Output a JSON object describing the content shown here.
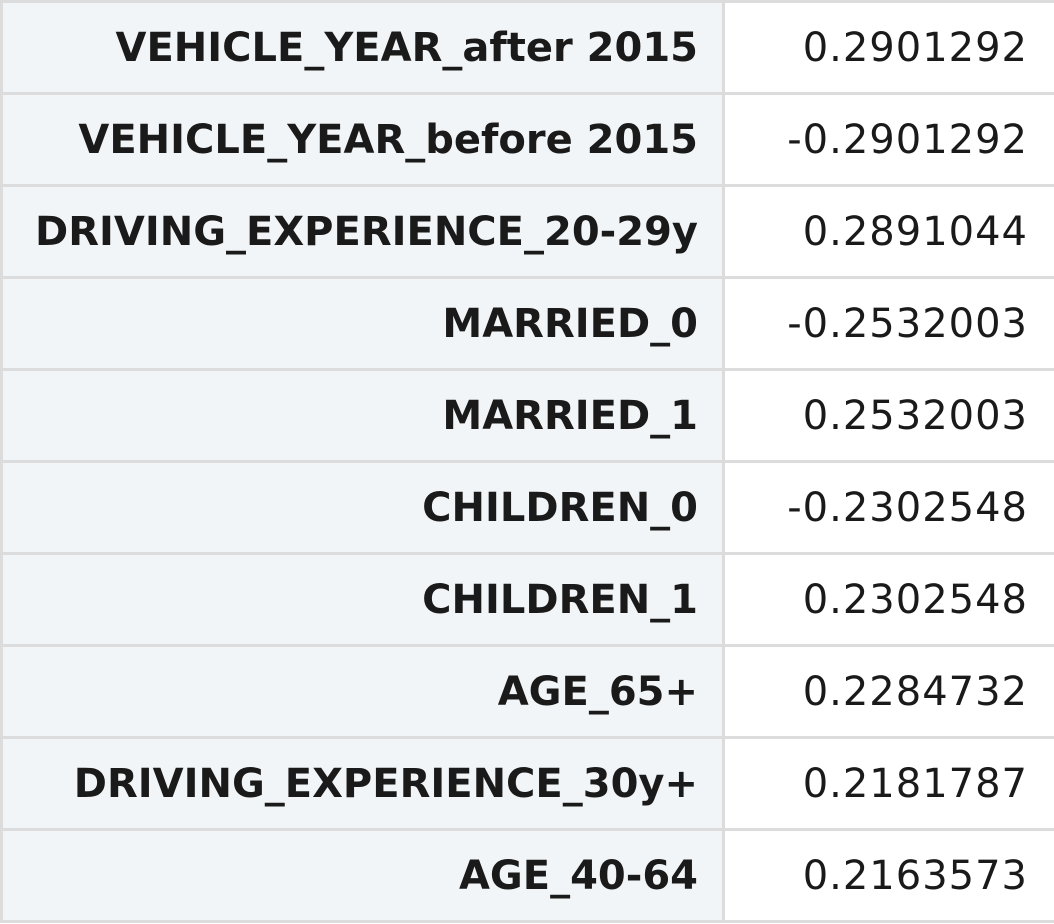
{
  "table": {
    "rows": [
      {
        "label": "VEHICLE_YEAR_after 2015",
        "value": "0.2901292"
      },
      {
        "label": "VEHICLE_YEAR_before 2015",
        "value": "-0.2901292"
      },
      {
        "label": "DRIVING_EXPERIENCE_20-29y",
        "value": "0.2891044"
      },
      {
        "label": "MARRIED_0",
        "value": "-0.2532003"
      },
      {
        "label": "MARRIED_1",
        "value": "0.2532003"
      },
      {
        "label": "CHILDREN_0",
        "value": "-0.2302548"
      },
      {
        "label": "CHILDREN_1",
        "value": "0.2302548"
      },
      {
        "label": "AGE_65+",
        "value": "0.2284732"
      },
      {
        "label": "DRIVING_EXPERIENCE_30y+",
        "value": "0.2181787"
      },
      {
        "label": "AGE_40-64",
        "value": "0.2163573"
      }
    ]
  }
}
